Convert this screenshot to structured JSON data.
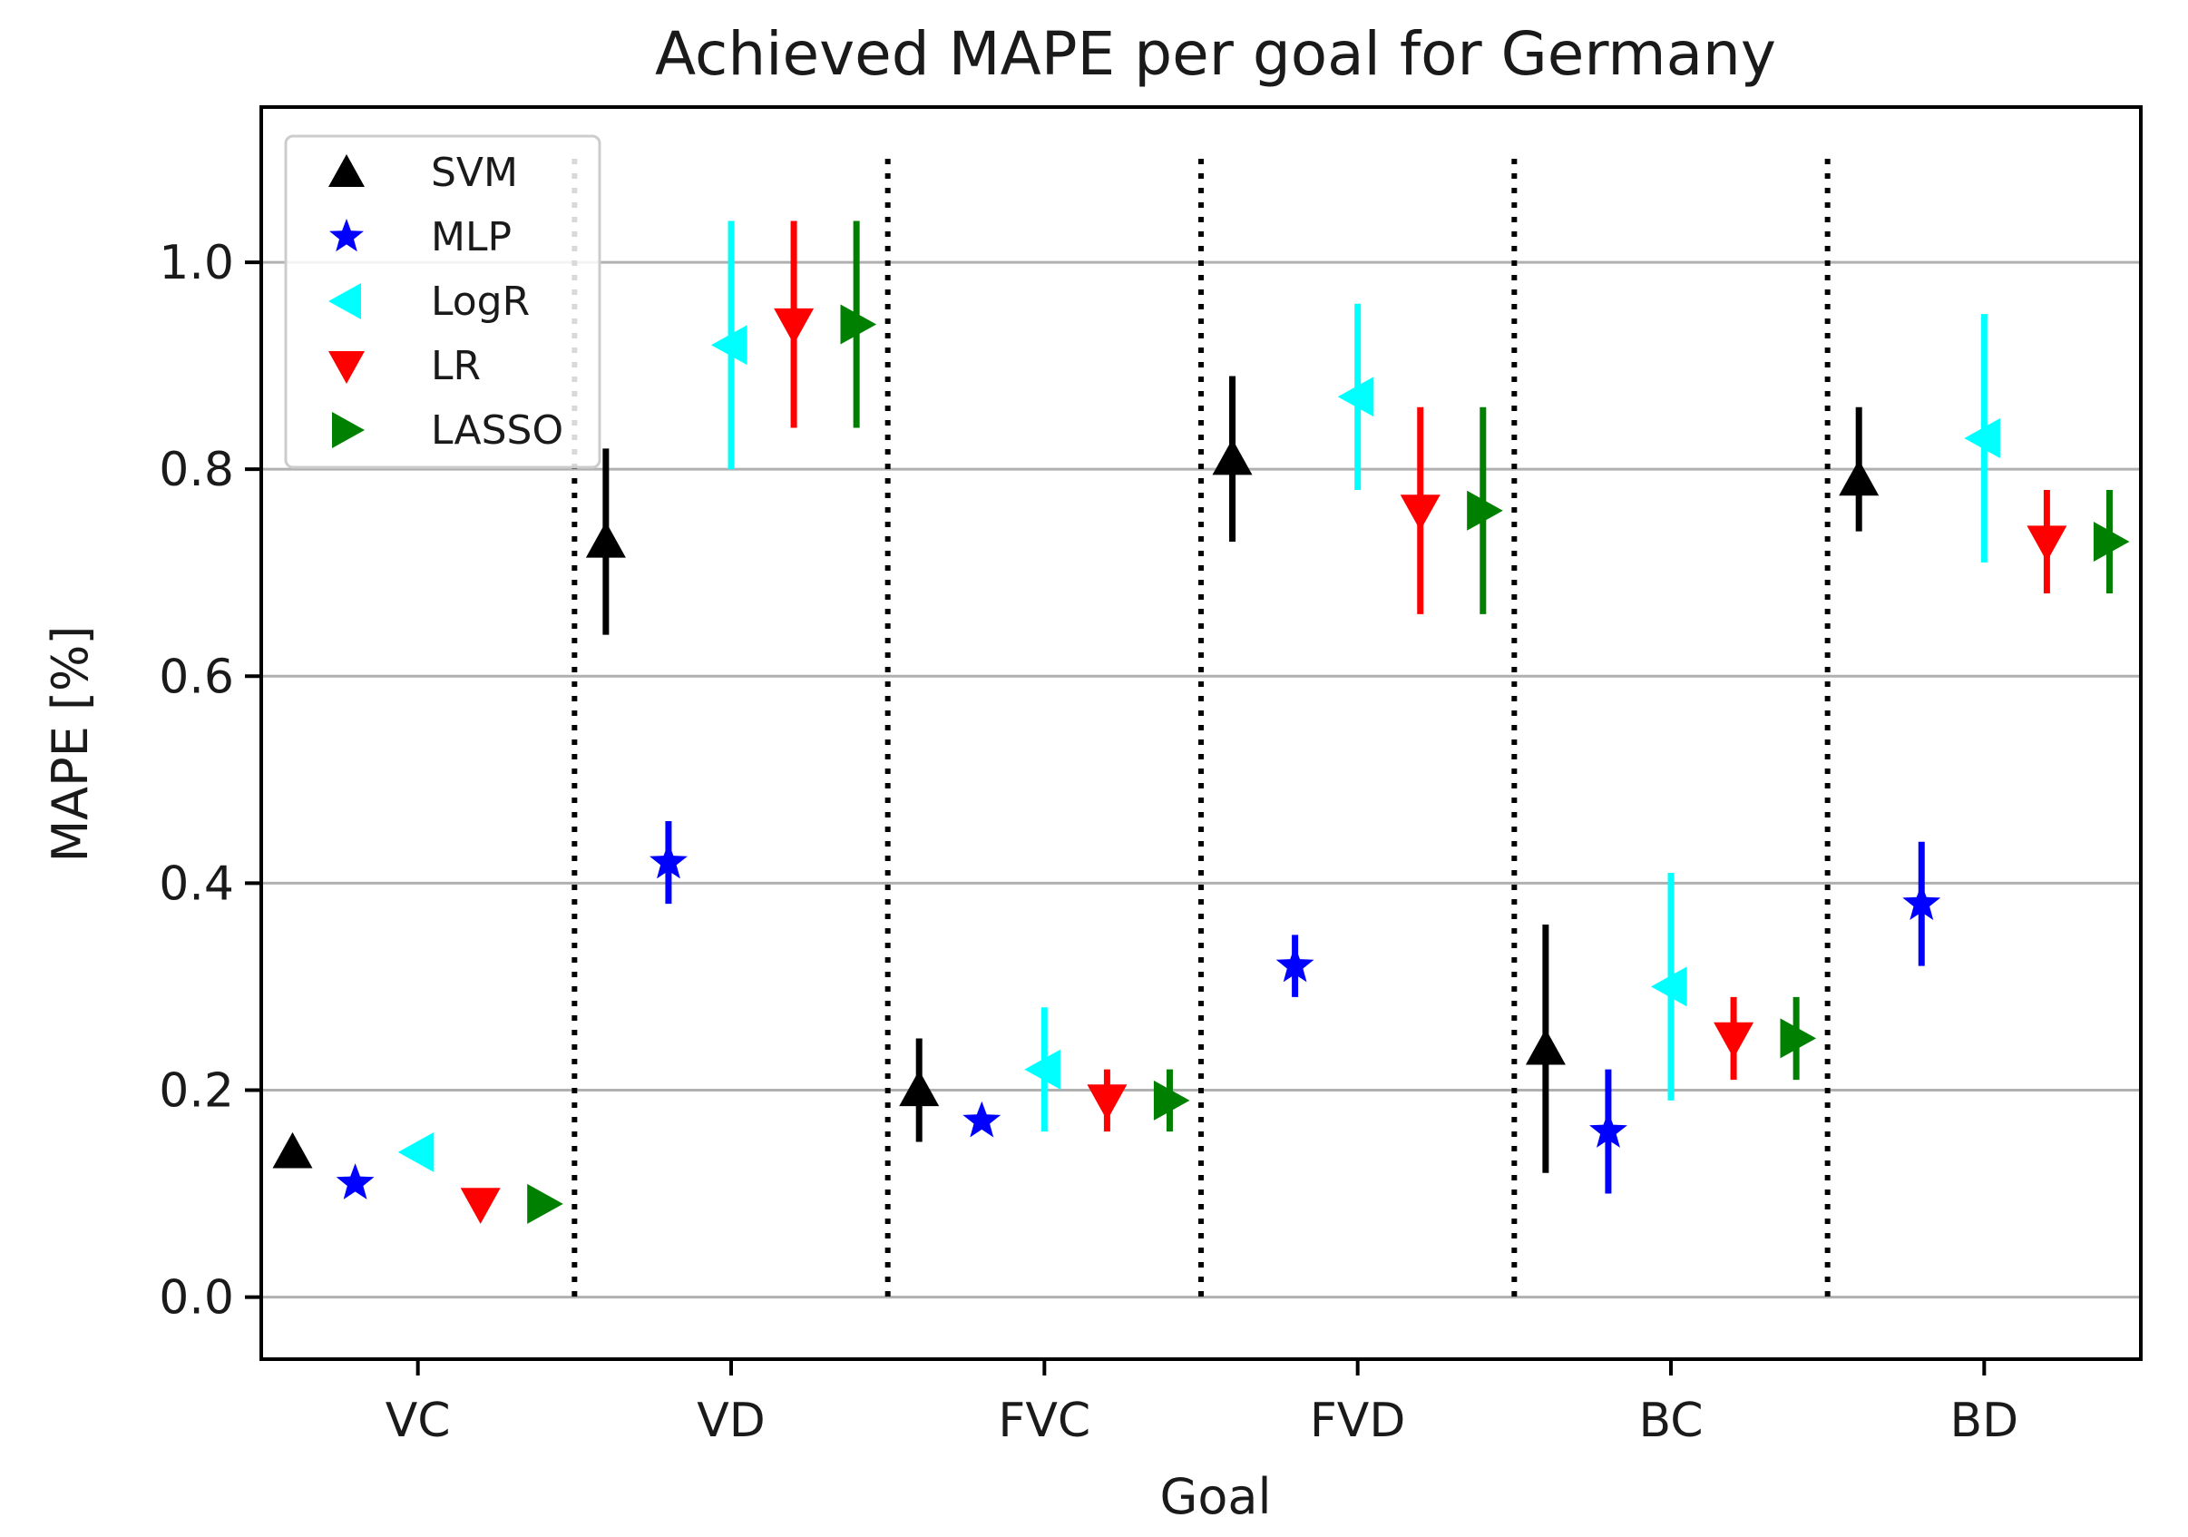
{
  "chart_data": {
    "type": "scatter",
    "title": "Achieved MAPE per goal for Germany",
    "xlabel": "Goal",
    "ylabel": "MAPE [%]",
    "categories": [
      "VC",
      "VD",
      "FVC",
      "FVD",
      "BC",
      "BD"
    ],
    "ylim": [
      -0.06,
      1.15
    ],
    "yticks": [
      0.0,
      0.2,
      0.4,
      0.6,
      0.8,
      1.0
    ],
    "ytick_labels": [
      "0.0",
      "0.2",
      "0.4",
      "0.6",
      "0.8",
      "1.0"
    ],
    "grid": "horizontal",
    "legend_position": "top-left",
    "separators": "dotted vertical lines between goals",
    "series": [
      {
        "name": "SVM",
        "marker": "triangle-up",
        "color": "#000000",
        "values": [
          0.14,
          0.73,
          0.2,
          0.81,
          0.24,
          0.79
        ],
        "err_low": [
          null,
          0.64,
          0.15,
          0.73,
          0.12,
          0.74
        ],
        "err_high": [
          null,
          0.82,
          0.25,
          0.89,
          0.36,
          0.86
        ]
      },
      {
        "name": "MLP",
        "marker": "star",
        "color": "#0000ff",
        "values": [
          0.11,
          0.42,
          0.17,
          0.32,
          0.16,
          0.38
        ],
        "err_low": [
          null,
          0.38,
          null,
          0.29,
          0.1,
          0.32
        ],
        "err_high": [
          null,
          0.46,
          null,
          0.35,
          0.22,
          0.44
        ]
      },
      {
        "name": "LogR",
        "marker": "triangle-left",
        "color": "#00ffff",
        "values": [
          0.14,
          0.92,
          0.22,
          0.87,
          0.3,
          0.83
        ],
        "err_low": [
          null,
          0.8,
          0.16,
          0.78,
          0.19,
          0.71
        ],
        "err_high": [
          null,
          1.04,
          0.28,
          0.96,
          0.41,
          0.95
        ]
      },
      {
        "name": "LR",
        "marker": "triangle-down",
        "color": "#ff0000",
        "values": [
          0.09,
          0.94,
          0.19,
          0.76,
          0.25,
          0.73
        ],
        "err_low": [
          null,
          0.84,
          0.16,
          0.66,
          0.21,
          0.68
        ],
        "err_high": [
          null,
          1.04,
          0.22,
          0.86,
          0.29,
          0.78
        ]
      },
      {
        "name": "LASSO",
        "marker": "triangle-right",
        "color": "#008000",
        "values": [
          0.09,
          0.94,
          0.19,
          0.76,
          0.25,
          0.73
        ],
        "err_low": [
          null,
          0.84,
          0.16,
          0.66,
          0.21,
          0.68
        ],
        "err_high": [
          null,
          1.04,
          0.22,
          0.86,
          0.29,
          0.78
        ]
      }
    ]
  }
}
